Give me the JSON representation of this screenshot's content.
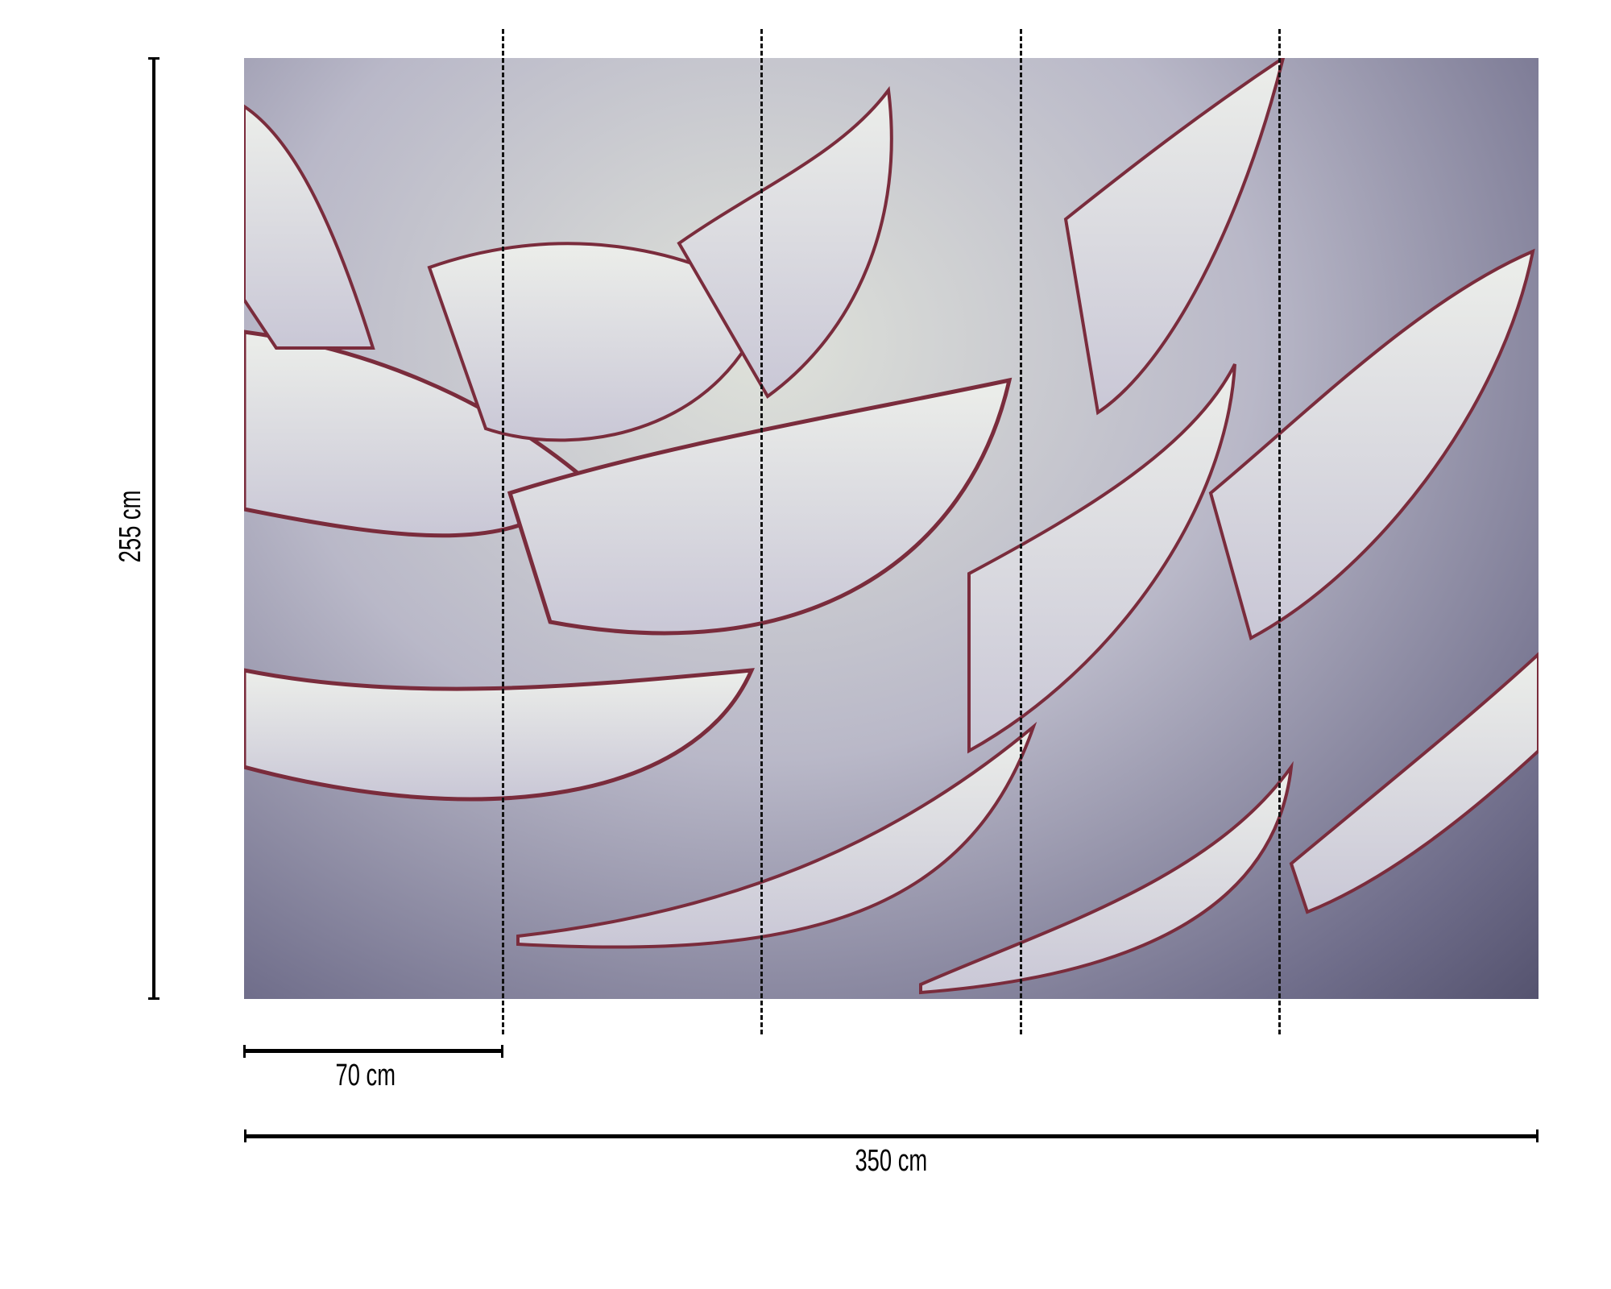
{
  "diagram": {
    "height_label": "255 cm",
    "panel_width_label": "70 cm",
    "total_width_label": "350 cm",
    "panel_count": 5,
    "photo_subject": "agave succulent close-up",
    "colors": {
      "leaf": "#dcdde0",
      "spine": "#7a2c3c",
      "shadow": "#55536f"
    }
  }
}
